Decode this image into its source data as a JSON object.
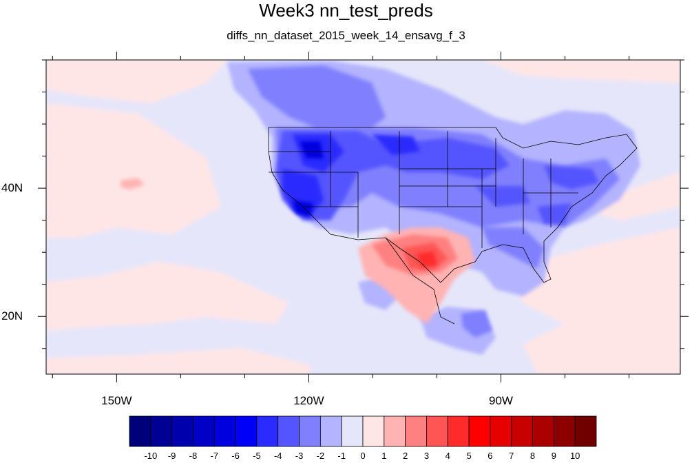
{
  "title": "Week3 nn_test_preds",
  "subtitle": "diffs_nn_dataset_2015_week_14_ensavg_f_3",
  "map": {
    "projection": "cylindrical-equidistant",
    "lon_range": [
      -161,
      -62
    ],
    "lat_range": [
      11,
      60
    ],
    "lon_ticks": [
      {
        "value": -150,
        "label": "150W"
      },
      {
        "value": -120,
        "label": "120W"
      },
      {
        "value": -90,
        "label": "90W"
      }
    ],
    "lat_ticks": [
      {
        "value": 40,
        "label": "40N"
      },
      {
        "value": 20,
        "label": "20N"
      }
    ],
    "background_color": "#e6e6fa",
    "outline_color": "#000000"
  },
  "colorbar": {
    "labels": [
      "-10",
      "-9",
      "-8",
      "-7",
      "-6",
      "-5",
      "-4",
      "-3",
      "-2",
      "-1",
      "0",
      "1",
      "2",
      "3",
      "4",
      "5",
      "6",
      "7",
      "8",
      "9",
      "10"
    ],
    "colors": [
      "#00007a",
      "#000094",
      "#0000ad",
      "#0000c6",
      "#0000df",
      "#0000f8",
      "#2b2bff",
      "#5555ff",
      "#8080ff",
      "#b3b3ff",
      "#e6e6fa",
      "#ffe6e6",
      "#ffb3b3",
      "#ff8080",
      "#ff5555",
      "#ff2b2b",
      "#ff0000",
      "#e60000",
      "#c80000",
      "#aa0000",
      "#8c0000",
      "#700000"
    ]
  }
}
